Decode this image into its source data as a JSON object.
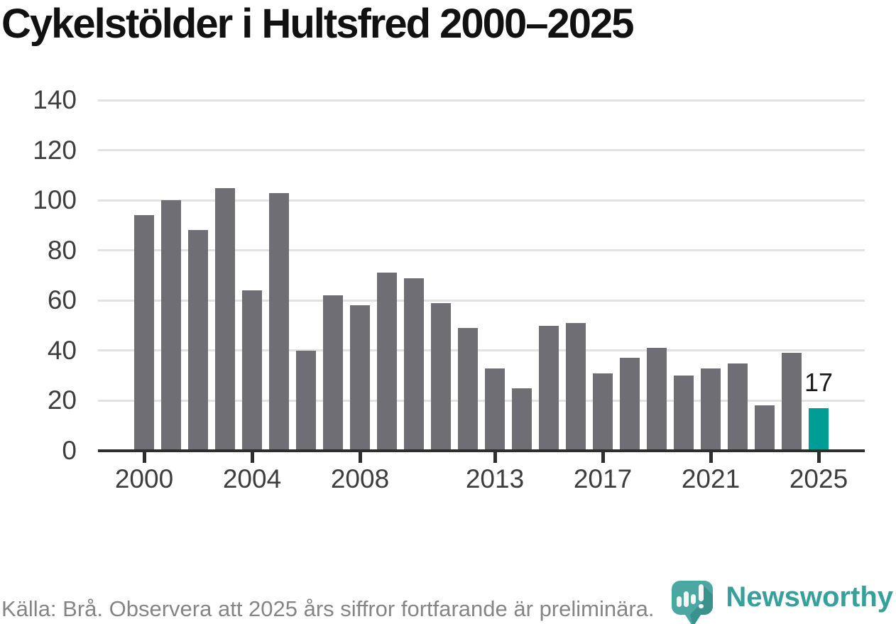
{
  "title": "Cykelstölder i Hultsfred 2000–2025",
  "chart_data": {
    "type": "bar",
    "title": "Cykelstölder i Hultsfred 2000–2025",
    "xlabel": "",
    "ylabel": "",
    "x": [
      2000,
      2001,
      2002,
      2003,
      2004,
      2005,
      2006,
      2007,
      2008,
      2009,
      2010,
      2011,
      2012,
      2013,
      2014,
      2015,
      2016,
      2017,
      2018,
      2019,
      2020,
      2021,
      2022,
      2023,
      2024,
      2025
    ],
    "values": [
      94,
      100,
      88,
      105,
      64,
      103,
      40,
      62,
      58,
      71,
      69,
      59,
      49,
      33,
      25,
      50,
      51,
      31,
      37,
      41,
      30,
      33,
      35,
      18,
      39,
      17
    ],
    "highlight_year": 2025,
    "annotation": {
      "text": "17",
      "year": 2025
    },
    "ylim": [
      0,
      140
    ],
    "yticks": [
      0,
      20,
      40,
      60,
      80,
      100,
      120,
      140
    ],
    "xticks": [
      2000,
      2004,
      2008,
      2013,
      2017,
      2021,
      2025
    ],
    "grid": true,
    "legend_position": "none",
    "colors": {
      "bar": "#706e75",
      "highlight": "#009d96",
      "axis": "#2e2e2e",
      "grid": "#e2e2e2",
      "tick_label": "#3d3d3d",
      "annotation": "#1a1a1a"
    }
  },
  "footer": {
    "source_note": "Källa: Brå. Observera att 2025 års siffror fortfarande är preliminära."
  },
  "branding": {
    "wordmark": "Newsworthy",
    "logo_icon": "newsworthy-pin-icon",
    "brand_color": "#38a09a",
    "pin_color": "#4aa7a2",
    "pin_shadow_color": "#3a928d"
  }
}
